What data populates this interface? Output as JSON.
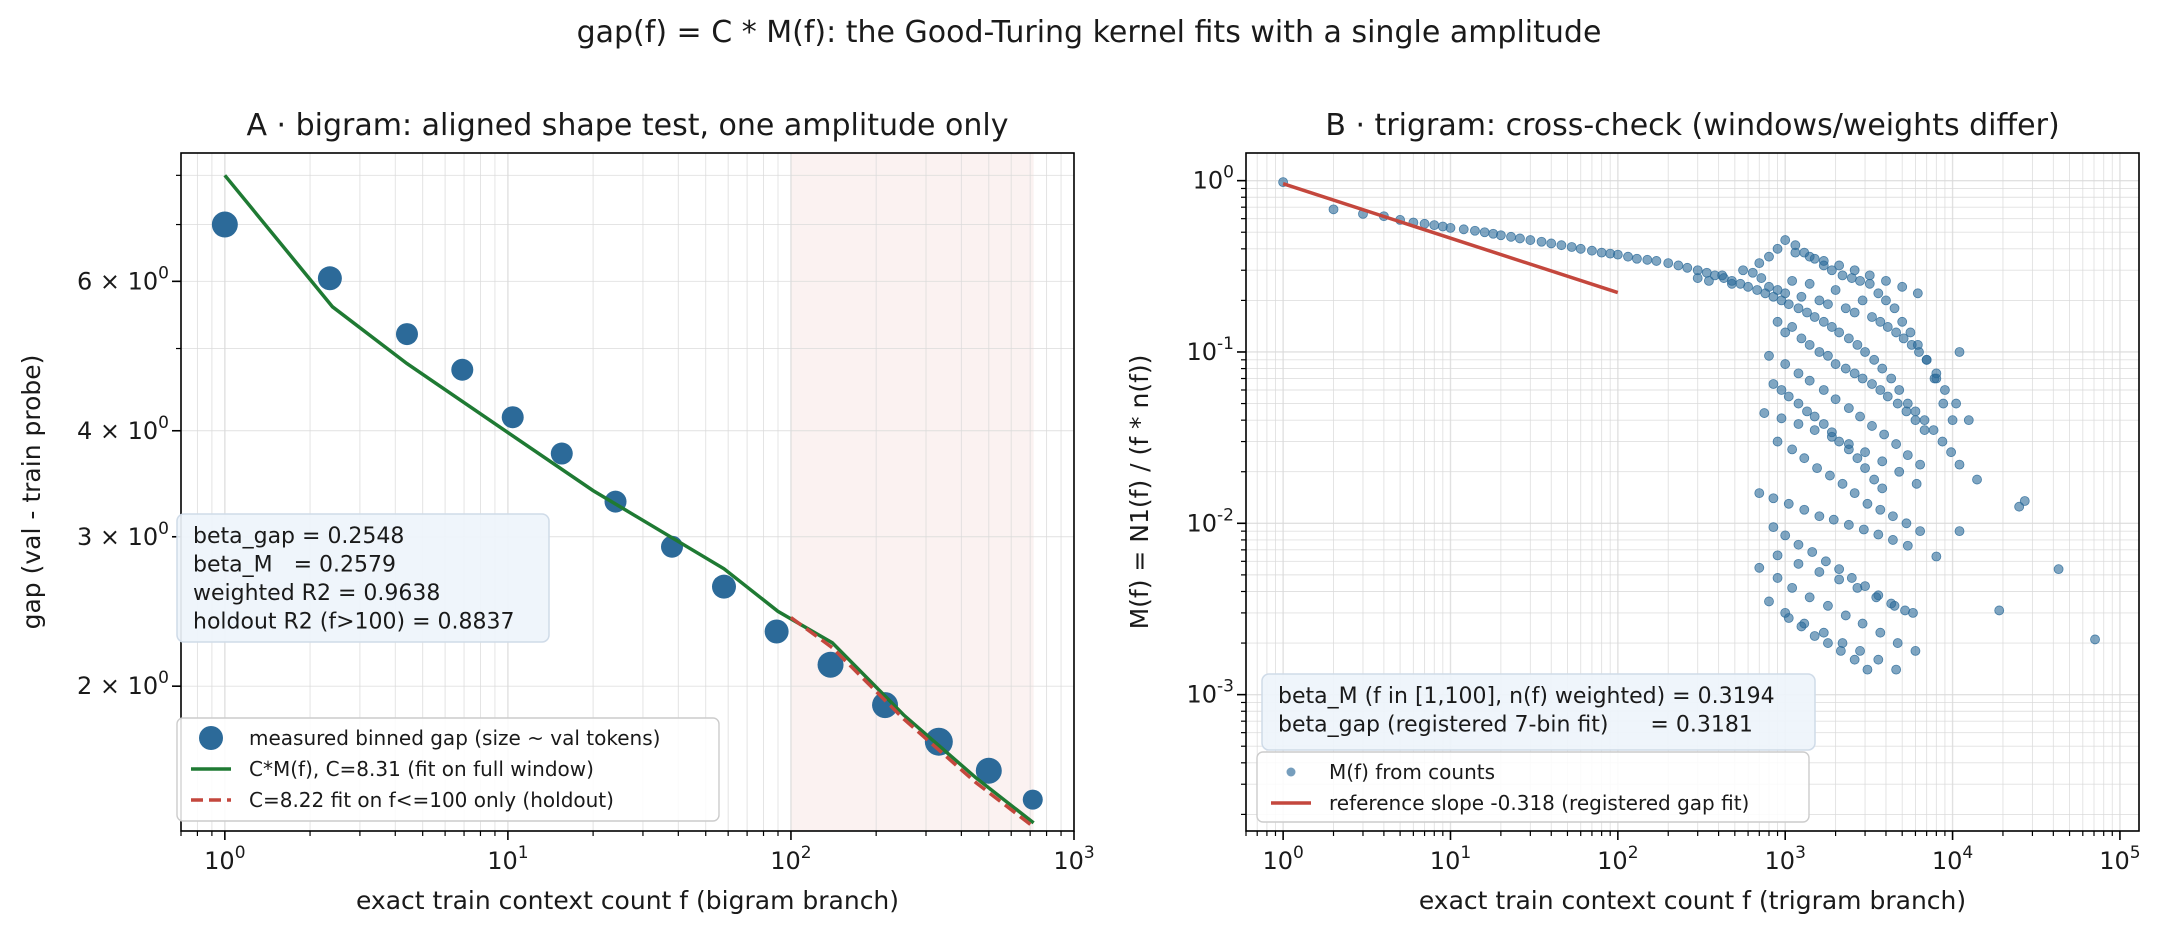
{
  "suptitle": "gap(f) = C * M(f): the Good-Turing kernel fits with a single amplitude",
  "chart_data": [
    {
      "type": "scatter",
      "title": "A · bigram: aligned shape test, one amplitude only",
      "xlabel": "exact train context count f (bigram branch)",
      "ylabel": "gap (val - train probe)",
      "xscale": "log",
      "yscale": "log",
      "xlim": [
        0.7,
        1000
      ],
      "ylim": [
        1.35,
        8.5
      ],
      "x_ticks": [
        {
          "base": "10",
          "exp": "0",
          "value": 1
        },
        {
          "base": "10",
          "exp": "1",
          "value": 10
        },
        {
          "base": "10",
          "exp": "2",
          "value": 100
        },
        {
          "base": "10",
          "exp": "3",
          "value": 1000
        }
      ],
      "y_ticks": [
        {
          "mant": "2",
          "base": "10",
          "exp": "0",
          "value": 2
        },
        {
          "mant": "3",
          "base": "10",
          "exp": "0",
          "value": 3
        },
        {
          "mant": "4",
          "base": "10",
          "exp": "0",
          "value": 4
        },
        {
          "mant": "6",
          "base": "10",
          "exp": "0",
          "value": 6
        }
      ],
      "holdout_region": [
        100,
        720
      ],
      "grid": true,
      "legend_position": "lower-left",
      "series": [
        {
          "name": "measured binned gap (size ~ val tokens)",
          "kind": "scatter",
          "color": "#2c6a99",
          "x": [
            1.0,
            2.35,
            4.4,
            6.9,
            10.4,
            15.5,
            24,
            38,
            58,
            89,
            138,
            215,
            333,
            500,
            715
          ],
          "y": [
            7.0,
            6.05,
            5.2,
            4.72,
            4.15,
            3.76,
            3.3,
            2.92,
            2.62,
            2.32,
            2.12,
            1.9,
            1.72,
            1.59,
            1.47
          ],
          "sizes": [
            13,
            12,
            11,
            11,
            11,
            11,
            11,
            11,
            12,
            12,
            13,
            13,
            14,
            13,
            10
          ]
        },
        {
          "name": "C*M(f), C=8.31 (fit on full window)",
          "kind": "line",
          "color": "#1f7a33",
          "x": [
            1.0,
            2.4,
            4.4,
            10,
            20,
            58,
            90,
            140,
            250,
            450,
            720
          ],
          "y": [
            8.0,
            5.6,
            4.8,
            3.98,
            3.4,
            2.75,
            2.45,
            2.25,
            1.85,
            1.56,
            1.38
          ]
        },
        {
          "name": "C=8.22 fit on f<=100 only (holdout)",
          "kind": "dashed-line",
          "color": "#c4473d",
          "x": [
            100,
            140,
            250,
            450,
            720
          ],
          "y": [
            2.41,
            2.22,
            1.83,
            1.54,
            1.365
          ]
        }
      ],
      "stats": [
        "beta_gap = 0.2548",
        "beta_M   = 0.2579",
        "weighted R2 = 0.9638",
        "holdout R2 (f>100) = 0.8837"
      ]
    },
    {
      "type": "scatter",
      "title": "B · trigram: cross-check (windows/weights differ)",
      "xlabel": "exact train context count f (trigram branch)",
      "ylabel": "M(f) = N1(f) / (f * n(f))",
      "xscale": "log",
      "yscale": "log",
      "xlim": [
        0.6,
        130000
      ],
      "ylim": [
        0.00016,
        1.45
      ],
      "x_ticks": [
        {
          "base": "10",
          "exp": "0",
          "value": 1
        },
        {
          "base": "10",
          "exp": "1",
          "value": 10
        },
        {
          "base": "10",
          "exp": "2",
          "value": 100
        },
        {
          "base": "10",
          "exp": "3",
          "value": 1000
        },
        {
          "base": "10",
          "exp": "4",
          "value": 10000
        },
        {
          "base": "10",
          "exp": "5",
          "value": 100000
        }
      ],
      "y_ticks": [
        {
          "base": "10",
          "exp": "-3",
          "value": 0.001
        },
        {
          "base": "10",
          "exp": "-2",
          "value": 0.01
        },
        {
          "base": "10",
          "exp": "-1",
          "value": 0.1
        },
        {
          "base": "10",
          "exp": "0",
          "value": 1
        }
      ],
      "grid": true,
      "legend_position": "lower-left",
      "series": [
        {
          "name": "M(f) from counts",
          "kind": "scatter",
          "color": "#2c6a99",
          "x": [
            1,
            2,
            3,
            4,
            5,
            6,
            7,
            8,
            9,
            10,
            12,
            14,
            16,
            18,
            20,
            23,
            26,
            30,
            35,
            40,
            46,
            53,
            60,
            70,
            80,
            90,
            100,
            115,
            130,
            150,
            170,
            200,
            230,
            260,
            300,
            340,
            380,
            430,
            480,
            540,
            600,
            680,
            760,
            850,
            950,
            1050,
            1200,
            1350,
            1500,
            1700,
            1900,
            2100,
            2400,
            2700,
            3000,
            3400,
            3800,
            4300,
            4800,
            5400,
            6000,
            6800,
            7700,
            8700,
            9800,
            11000,
            14000,
            19000,
            27000,
            43000,
            71000,
            300,
            350,
            420,
            480,
            560,
            640,
            720,
            800,
            900,
            1000,
            1100,
            1250,
            1400,
            1600,
            1800,
            2000,
            2300,
            2600,
            2900,
            3300,
            3700,
            4100,
            4600,
            5100,
            5700,
            6300,
            7000,
            8000,
            9000,
            10500,
            12500,
            700,
            800,
            900,
            1000,
            1150,
            1300,
            1500,
            1700,
            1900,
            2200,
            2500,
            2800,
            3200,
            3600,
            4000,
            4500,
            5000,
            5600,
            6200,
            7000,
            7800,
            8800,
            10000,
            900,
            1000,
            1100,
            1250,
            1400,
            1600,
            1800,
            2000,
            2300,
            2600,
            2900,
            3300,
            3700,
            4100,
            4700,
            5300,
            6000,
            6800,
            850,
            950,
            1050,
            1200,
            1350,
            1500,
            1700,
            1900,
            2100,
            2400,
            2700,
            3000,
            3400,
            3800,
            800,
            1000,
            1200,
            1400,
            1700,
            2000,
            2400,
            2800,
            3300,
            3900,
            4600,
            5400,
            6400,
            900,
            1100,
            1300,
            1550,
            1850,
            2200,
            2600,
            3100,
            3700,
            4400,
            5300,
            6400,
            850,
            1000,
            1200,
            1450,
            1750,
            2100,
            2500,
            3000,
            3600,
            4300,
            5200,
            1050,
            1250,
            1500,
            1800,
            2150,
            2600,
            3100,
            700,
            900,
            1100,
            1400,
            1800,
            2300,
            2900,
            3700,
            4700,
            6000,
            800,
            1000,
            1300,
            1700,
            2200,
            2800,
            3600,
            4600,
            900,
            1200,
            1600,
            2100,
            2700,
            3500,
            4500,
            5800,
            700,
            850,
            1050,
            1300,
            1600,
            1950,
            2400,
            2950,
            3600,
            4400,
            5400,
            750,
            950,
            1200,
            1500,
            1900,
            2400,
            3000,
            3800,
            4800,
            6100,
            8000,
            11000,
            25000,
            1150,
            1400,
            1700,
            2100,
            2600,
            3200,
            4000,
            5000,
            6200,
            8000,
            11000
          ],
          "y": [
            0.98,
            0.68,
            0.64,
            0.62,
            0.59,
            0.57,
            0.56,
            0.55,
            0.54,
            0.53,
            0.52,
            0.51,
            0.5,
            0.49,
            0.48,
            0.47,
            0.46,
            0.45,
            0.44,
            0.43,
            0.42,
            0.41,
            0.4,
            0.39,
            0.38,
            0.375,
            0.37,
            0.36,
            0.35,
            0.345,
            0.34,
            0.33,
            0.32,
            0.31,
            0.3,
            0.29,
            0.28,
            0.27,
            0.26,
            0.25,
            0.24,
            0.23,
            0.22,
            0.21,
            0.2,
            0.19,
            0.18,
            0.17,
            0.16,
            0.15,
            0.14,
            0.13,
            0.12,
            0.11,
            0.1,
            0.09,
            0.08,
            0.07,
            0.06,
            0.05,
            0.045,
            0.04,
            0.035,
            0.03,
            0.026,
            0.022,
            0.018,
            0.0031,
            0.0135,
            0.0054,
            0.0021,
            0.27,
            0.26,
            0.28,
            0.25,
            0.3,
            0.29,
            0.27,
            0.24,
            0.23,
            0.22,
            0.26,
            0.21,
            0.25,
            0.2,
            0.19,
            0.23,
            0.18,
            0.17,
            0.2,
            0.16,
            0.15,
            0.14,
            0.13,
            0.12,
            0.11,
            0.1,
            0.09,
            0.075,
            0.06,
            0.05,
            0.04,
            0.33,
            0.36,
            0.4,
            0.45,
            0.42,
            0.38,
            0.35,
            0.32,
            0.3,
            0.28,
            0.27,
            0.26,
            0.25,
            0.22,
            0.2,
            0.18,
            0.15,
            0.13,
            0.11,
            0.09,
            0.07,
            0.05,
            0.04,
            0.15,
            0.13,
            0.14,
            0.12,
            0.11,
            0.1,
            0.095,
            0.085,
            0.08,
            0.075,
            0.07,
            0.065,
            0.06,
            0.055,
            0.05,
            0.045,
            0.04,
            0.035,
            0.065,
            0.06,
            0.055,
            0.05,
            0.045,
            0.042,
            0.038,
            0.034,
            0.03,
            0.027,
            0.024,
            0.021,
            0.018,
            0.016,
            0.095,
            0.085,
            0.075,
            0.068,
            0.06,
            0.053,
            0.047,
            0.042,
            0.037,
            0.033,
            0.029,
            0.025,
            0.022,
            0.03,
            0.027,
            0.024,
            0.021,
            0.019,
            0.017,
            0.015,
            0.013,
            0.012,
            0.011,
            0.01,
            0.009,
            0.0095,
            0.0085,
            0.0075,
            0.0068,
            0.006,
            0.0054,
            0.0048,
            0.0043,
            0.0038,
            0.0034,
            0.0031,
            0.0028,
            0.0025,
            0.0022,
            0.002,
            0.0018,
            0.0016,
            0.0014,
            0.0055,
            0.0048,
            0.0042,
            0.0037,
            0.0033,
            0.0029,
            0.0026,
            0.0023,
            0.002,
            0.0018,
            0.0035,
            0.003,
            0.0026,
            0.0023,
            0.002,
            0.0018,
            0.0016,
            0.0014,
            0.0065,
            0.0058,
            0.0052,
            0.0047,
            0.0042,
            0.0037,
            0.0033,
            0.003,
            0.015,
            0.014,
            0.013,
            0.012,
            0.011,
            0.0105,
            0.0098,
            0.0092,
            0.0086,
            0.008,
            0.0074,
            0.044,
            0.041,
            0.038,
            0.035,
            0.032,
            0.029,
            0.026,
            0.023,
            0.02,
            0.017,
            0.0064,
            0.009,
            0.0125,
            0.38,
            0.36,
            0.34,
            0.32,
            0.3,
            0.28,
            0.26,
            0.24,
            0.22,
            0.07,
            0.1
          ],
          "size": 4.5
        },
        {
          "name": "reference slope -0.318 (registered gap fit)",
          "kind": "line",
          "color": "#c4473d",
          "x": [
            1,
            100
          ],
          "y": [
            0.96,
            0.222
          ]
        }
      ],
      "stats": [
        "beta_M (f in [1,100], n(f) weighted) = 0.3194",
        "beta_gap (registered 7-bin fit)      = 0.3181"
      ]
    }
  ]
}
